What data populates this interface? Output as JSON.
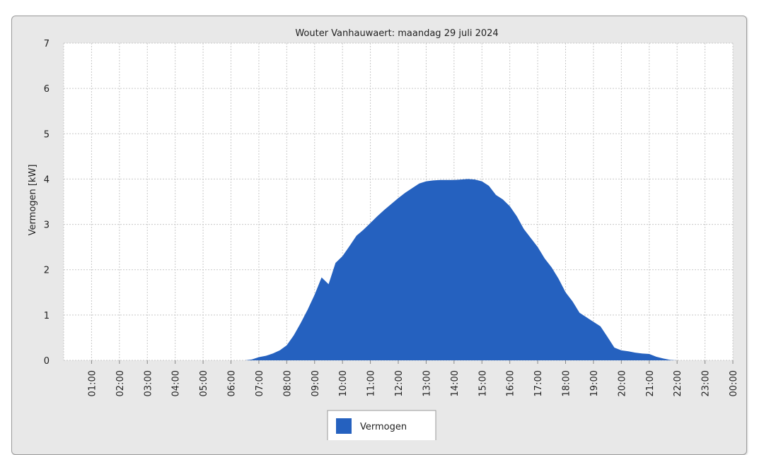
{
  "chart_data": {
    "type": "area",
    "title": "Wouter Vanhauwaert: maandag 29 juli 2024",
    "xlabel": "",
    "ylabel": "Vermogen [kW]",
    "ylim": [
      0,
      7
    ],
    "yticks": [
      "0",
      "1",
      "2",
      "3",
      "4",
      "5",
      "6",
      "7"
    ],
    "xticks": [
      "01:00",
      "02:00",
      "03:00",
      "04:00",
      "05:00",
      "06:00",
      "07:00",
      "08:00",
      "09:00",
      "10:00",
      "11:00",
      "12:00",
      "13:00",
      "14:00",
      "15:00",
      "16:00",
      "17:00",
      "18:00",
      "19:00",
      "20:00",
      "21:00",
      "22:00",
      "23:00",
      "00:00"
    ],
    "grid": true,
    "legend_position": "bottom",
    "series": [
      {
        "name": "Vermogen",
        "color": "#2561bf",
        "x": [
          6.0,
          6.5,
          6.75,
          7.0,
          7.25,
          7.5,
          7.75,
          8.0,
          8.25,
          8.5,
          8.75,
          9.0,
          9.25,
          9.5,
          9.75,
          10.0,
          10.25,
          10.5,
          10.75,
          11.0,
          11.25,
          11.5,
          11.75,
          12.0,
          12.25,
          12.5,
          12.75,
          13.0,
          13.25,
          13.5,
          13.75,
          14.0,
          14.25,
          14.5,
          14.75,
          15.0,
          15.25,
          15.5,
          15.75,
          16.0,
          16.25,
          16.5,
          16.75,
          17.0,
          17.25,
          17.5,
          17.75,
          18.0,
          18.25,
          18.5,
          18.75,
          19.0,
          19.25,
          19.5,
          19.75,
          20.0,
          20.25,
          20.5,
          20.75,
          21.0,
          21.25,
          21.5,
          21.75,
          22.0
        ],
        "values": [
          0.0,
          0.0,
          0.02,
          0.07,
          0.1,
          0.15,
          0.22,
          0.33,
          0.55,
          0.82,
          1.12,
          1.45,
          1.83,
          1.68,
          2.15,
          2.3,
          2.52,
          2.75,
          2.88,
          3.03,
          3.18,
          3.32,
          3.45,
          3.58,
          3.7,
          3.8,
          3.9,
          3.95,
          3.97,
          3.98,
          3.98,
          3.98,
          3.99,
          4.0,
          3.99,
          3.95,
          3.85,
          3.65,
          3.55,
          3.4,
          3.18,
          2.9,
          2.7,
          2.5,
          2.25,
          2.05,
          1.8,
          1.5,
          1.3,
          1.05,
          0.95,
          0.85,
          0.75,
          0.52,
          0.28,
          0.22,
          0.2,
          0.17,
          0.15,
          0.14,
          0.08,
          0.04,
          0.01,
          0.0
        ]
      }
    ]
  }
}
